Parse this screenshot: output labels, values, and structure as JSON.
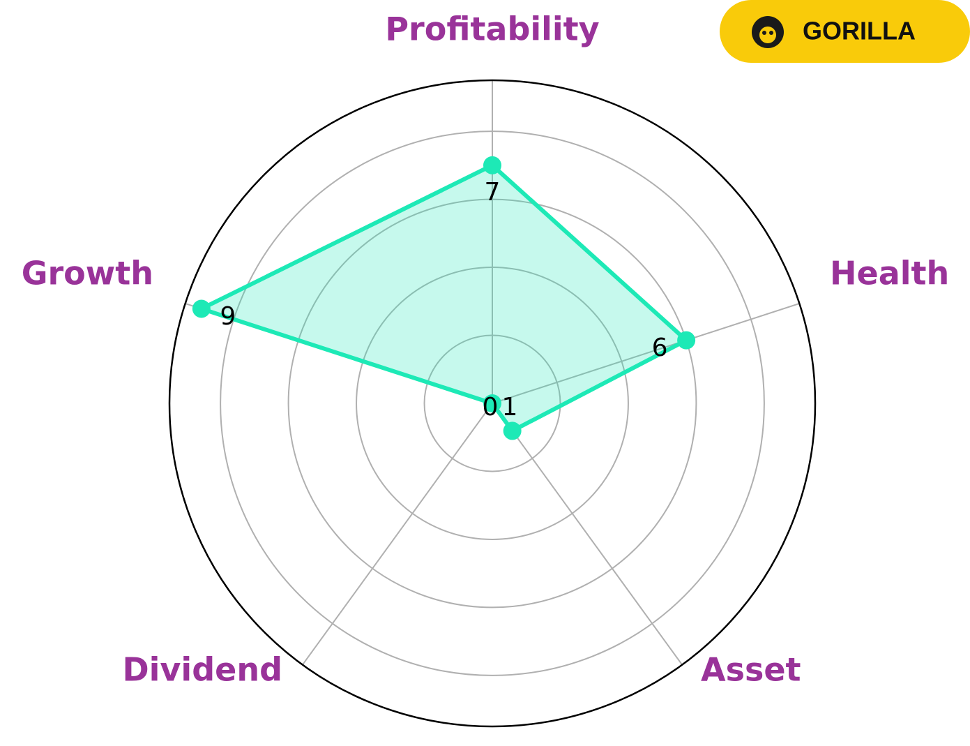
{
  "badge": "GORILLA",
  "chart_data": {
    "type": "radar",
    "categories": [
      "Profitability",
      "Health",
      "Asset",
      "Dividend",
      "Growth"
    ],
    "values": [
      7,
      6,
      1,
      0,
      9
    ],
    "color": "#1de9b6",
    "ylim": [
      0,
      9.5
    ],
    "yticks": [
      2,
      4,
      6,
      8
    ],
    "grid": true
  }
}
